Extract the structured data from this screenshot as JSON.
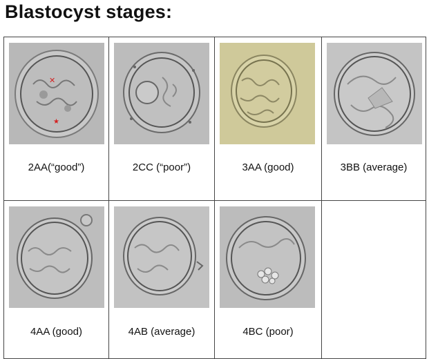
{
  "title": "Blastocyst stages:",
  "cells": [
    {
      "label": "2AA(“good”)",
      "image": "blastocyst-2aa-micrograph",
      "background": "#b8b8b8"
    },
    {
      "label": "2CC (“poor”)",
      "image": "blastocyst-2cc-micrograph",
      "background": "#bcbcbc"
    },
    {
      "label": "3AA (good)",
      "image": "blastocyst-3aa-micrograph",
      "background": "#cfc99a"
    },
    {
      "label": "3BB (average)",
      "image": "blastocyst-3bb-micrograph",
      "background": "#c4c4c4"
    },
    {
      "label": "4AA (good)",
      "image": "blastocyst-4aa-micrograph",
      "background": "#bdbdbd"
    },
    {
      "label": "4AB (average)",
      "image": "blastocyst-4ab-micrograph",
      "background": "#c2c2c2"
    },
    {
      "label": "4BC (poor)",
      "image": "blastocyst-4bc-micrograph",
      "background": "#bcbcbc"
    }
  ]
}
